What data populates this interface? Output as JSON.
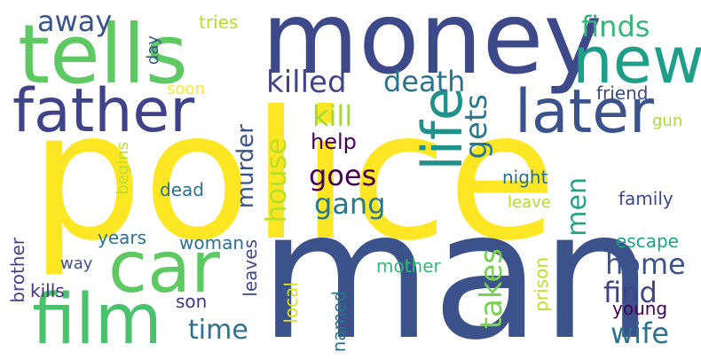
{
  "words": [
    {
      "text": "police",
      "color": "#fde725"
    },
    {
      "text": "man",
      "color": "#3b528b"
    },
    {
      "text": "money",
      "color": "#3e4989"
    },
    {
      "text": "tells",
      "color": "#5ec962"
    },
    {
      "text": "new",
      "color": "#1f9e89"
    },
    {
      "text": "father",
      "color": "#404387"
    },
    {
      "text": "later",
      "color": "#3b528b"
    },
    {
      "text": "car",
      "color": "#5ec962"
    },
    {
      "text": "life",
      "color": "#21918c"
    },
    {
      "text": "film",
      "color": "#4ac16d"
    },
    {
      "text": "away",
      "color": "#3b528b"
    },
    {
      "text": "killed",
      "color": "#414487"
    },
    {
      "text": "death",
      "color": "#2c728e"
    },
    {
      "text": "kill",
      "color": "#a0da39"
    },
    {
      "text": "finds",
      "color": "#35b779"
    },
    {
      "text": "gets",
      "color": "#2a788e"
    },
    {
      "text": "house",
      "color": "#bddf26"
    },
    {
      "text": "murder",
      "color": "#3b528b"
    },
    {
      "text": "help",
      "color": "#440154"
    },
    {
      "text": "goes",
      "color": "#440154"
    },
    {
      "text": "gang",
      "color": "#2a788e"
    },
    {
      "text": "men",
      "color": "#20a486"
    },
    {
      "text": "home",
      "color": "#3b528b"
    },
    {
      "text": "find",
      "color": "#414487"
    },
    {
      "text": "wife",
      "color": "#2c728e"
    },
    {
      "text": "takes",
      "color": "#7ad151"
    },
    {
      "text": "time",
      "color": "#2c728e"
    },
    {
      "text": "tries",
      "color": "#b5de2b"
    },
    {
      "text": "day",
      "color": "#3b528b"
    },
    {
      "text": "soon",
      "color": "#fde725"
    },
    {
      "text": "friend",
      "color": "#3e4989"
    },
    {
      "text": "gun",
      "color": "#a5db36"
    },
    {
      "text": "night",
      "color": "#2c728e"
    },
    {
      "text": "leave",
      "color": "#b5de2b"
    },
    {
      "text": "family",
      "color": "#3e4989"
    },
    {
      "text": "begins",
      "color": "#b8de29"
    },
    {
      "text": "dead",
      "color": "#2c728e"
    },
    {
      "text": "years",
      "color": "#2c728e"
    },
    {
      "text": "woman",
      "color": "#2c728e"
    },
    {
      "text": "escape",
      "color": "#20a486"
    },
    {
      "text": "way",
      "color": "#3b528b"
    },
    {
      "text": "brother",
      "color": "#414487"
    },
    {
      "text": "kills",
      "color": "#46327e"
    },
    {
      "text": "leaves",
      "color": "#3e4989"
    },
    {
      "text": "mother",
      "color": "#35b779"
    },
    {
      "text": "prison",
      "color": "#bddf26"
    },
    {
      "text": "son",
      "color": "#46327e"
    },
    {
      "text": "local",
      "color": "#d8e219"
    },
    {
      "text": "named",
      "color": "#2c728e"
    },
    {
      "text": "young",
      "color": "#440154"
    }
  ]
}
